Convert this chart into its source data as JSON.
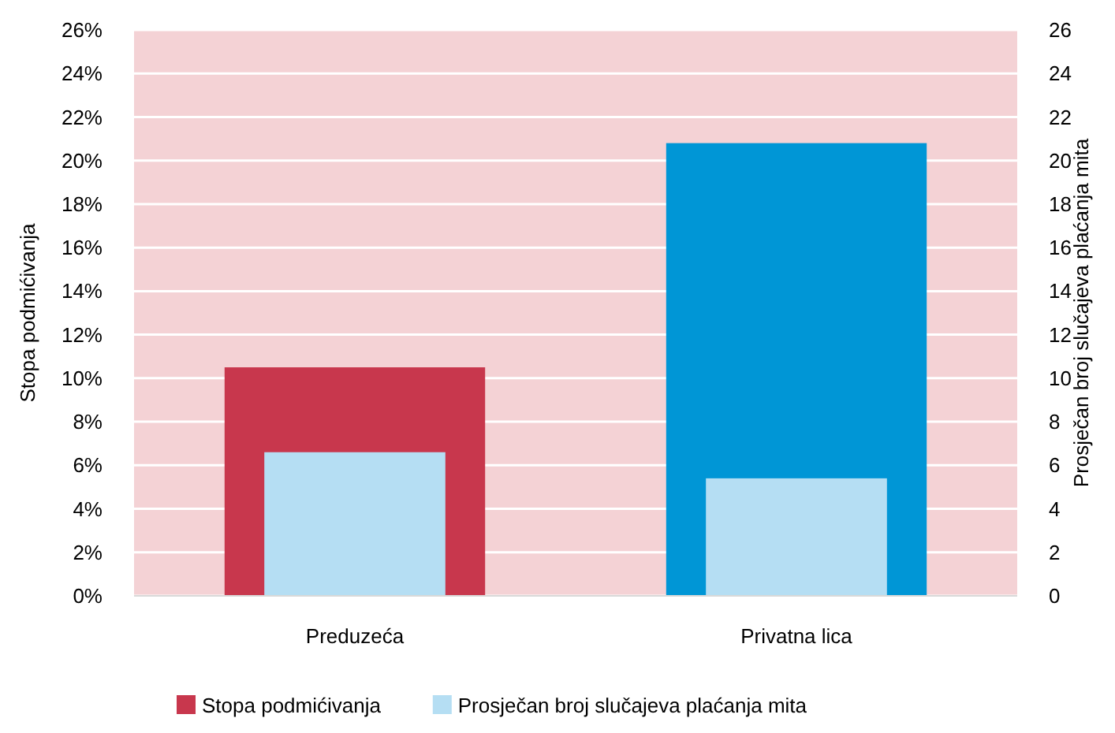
{
  "chart_data": {
    "type": "bar",
    "categories": [
      "Preduzeća",
      "Privatna lica"
    ],
    "ylabel": "Stopa podmićivanja",
    "y2label": "Prosječan broj slučajeva plaćanja mita",
    "series": [
      {
        "name": "Stopa podmićivanja",
        "color": "#c8374d",
        "colors": [
          "#c8374d",
          "#0096d6"
        ],
        "values": [
          10.5,
          20.8
        ]
      },
      {
        "name": "Prosječan broj slučajeva plaćanja mita",
        "color": "#b5def3",
        "values": [
          6.6,
          5.4
        ],
        "axis": "y2"
      }
    ],
    "ylim": [
      0,
      26
    ],
    "yticks": [
      {
        "value": 0,
        "label": "0%"
      },
      {
        "value": 2,
        "label": "2%"
      },
      {
        "value": 4,
        "label": "4%"
      },
      {
        "value": 6,
        "label": "6%"
      },
      {
        "value": 8,
        "label": "8%"
      },
      {
        "value": 10,
        "label": "10%"
      },
      {
        "value": 12,
        "label": "12%"
      },
      {
        "value": 14,
        "label": "14%"
      },
      {
        "value": 16,
        "label": "16%"
      },
      {
        "value": 18,
        "label": "18%"
      },
      {
        "value": 20,
        "label": "20%"
      },
      {
        "value": 22,
        "label": "22%"
      },
      {
        "value": 24,
        "label": "24%"
      },
      {
        "value": 26,
        "label": "26%"
      }
    ],
    "y2lim": [
      0,
      26
    ],
    "y2ticks": [
      0,
      2,
      4,
      6,
      8,
      10,
      12,
      14,
      16,
      18,
      20,
      22,
      24,
      26
    ],
    "grid": "y",
    "legend": "bottom"
  }
}
